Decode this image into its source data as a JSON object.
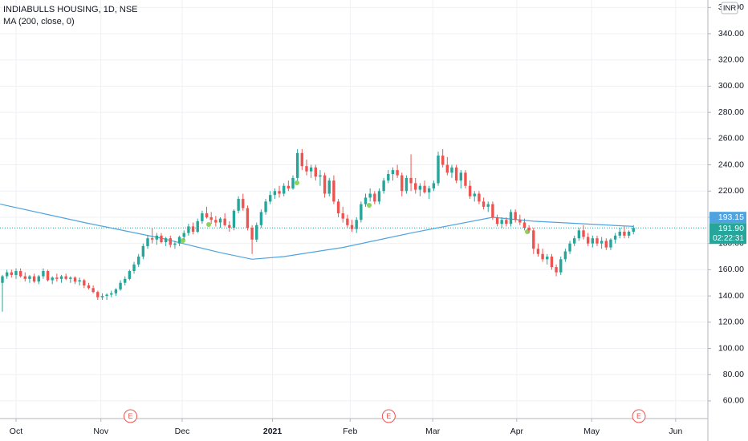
{
  "chart_data": {
    "type": "candlestick",
    "title": "INDIABULLS HOUSING, 1D, NSE",
    "up_color": "#26a69a",
    "down_color": "#ef5350",
    "ylim": [
      46.5,
      365.7
    ],
    "yticks": [
      {
        "value": 60,
        "label": "60.00"
      },
      {
        "value": 80,
        "label": "80.00"
      },
      {
        "value": 100,
        "label": "100.00"
      },
      {
        "value": 120,
        "label": "120.00"
      },
      {
        "value": 140,
        "label": "140.00"
      },
      {
        "value": 160,
        "label": "160.00"
      },
      {
        "value": 180,
        "label": "180.00"
      },
      {
        "value": 200,
        "label": "200.00"
      },
      {
        "value": 220,
        "label": "220.00"
      },
      {
        "value": 240,
        "label": "240.00"
      },
      {
        "value": 260,
        "label": "260.00"
      },
      {
        "value": 280,
        "label": "280.00"
      },
      {
        "value": 300,
        "label": "300.00"
      },
      {
        "value": 320,
        "label": "320.00"
      },
      {
        "value": 340,
        "label": "340.00"
      },
      {
        "value": 360,
        "label": "360.00"
      }
    ],
    "xlim": [
      -0.53,
      155.4
    ],
    "xticks": [
      {
        "value": 3,
        "label": "Oct"
      },
      {
        "value": 21.7,
        "label": "Nov"
      },
      {
        "value": 39.6,
        "label": "Dec"
      },
      {
        "value": 59.5,
        "label": "2021"
      },
      {
        "value": 76.6,
        "label": "Feb"
      },
      {
        "value": 94.8,
        "label": "Mar"
      },
      {
        "value": 113.3,
        "label": "Apr"
      },
      {
        "value": 129.8,
        "label": "May"
      },
      {
        "value": 148.3,
        "label": "Jun"
      }
    ],
    "grid": true,
    "currency": "INR",
    "ohlc": [
      [
        150,
        156,
        128,
        155
      ],
      [
        155,
        160,
        153,
        158
      ],
      [
        158,
        160,
        154,
        156
      ],
      [
        156,
        161,
        153,
        159
      ],
      [
        159,
        161,
        154,
        155
      ],
      [
        155,
        158,
        151,
        153
      ],
      [
        153,
        156,
        150,
        155
      ],
      [
        155,
        157,
        150,
        151
      ],
      [
        151,
        156,
        149,
        155
      ],
      [
        155,
        161,
        153,
        159
      ],
      [
        159,
        160,
        151,
        152
      ],
      [
        152,
        155,
        149,
        154
      ],
      [
        154,
        157,
        151,
        153
      ],
      [
        153,
        156,
        150,
        155
      ],
      [
        155,
        157,
        152,
        153
      ],
      [
        153,
        155,
        150,
        154
      ],
      [
        154,
        155,
        149,
        151
      ],
      [
        151,
        154,
        148,
        152
      ],
      [
        152,
        153,
        146,
        148
      ],
      [
        148,
        150,
        145,
        146
      ],
      [
        146,
        148,
        142,
        143
      ],
      [
        143,
        144,
        137,
        139
      ],
      [
        139,
        142,
        137,
        140
      ],
      [
        140,
        142,
        137,
        141
      ],
      [
        141,
        144,
        139,
        142
      ],
      [
        142,
        146,
        140,
        145
      ],
      [
        145,
        152,
        144,
        150
      ],
      [
        150,
        155,
        148,
        153
      ],
      [
        153,
        160,
        152,
        159
      ],
      [
        159,
        166,
        157,
        164
      ],
      [
        164,
        172,
        162,
        170
      ],
      [
        170,
        180,
        168,
        178
      ],
      [
        178,
        186,
        176,
        184
      ],
      [
        184,
        192,
        180,
        183
      ],
      [
        183,
        188,
        179,
        186
      ],
      [
        186,
        188,
        180,
        181
      ],
      [
        181,
        185,
        178,
        184
      ],
      [
        184,
        186,
        177,
        179
      ],
      [
        179,
        182,
        176,
        180
      ],
      [
        180,
        186,
        178,
        185
      ],
      [
        185,
        190,
        183,
        188
      ],
      [
        188,
        195,
        186,
        193
      ],
      [
        193,
        196,
        187,
        189
      ],
      [
        189,
        199,
        188,
        197
      ],
      [
        197,
        205,
        195,
        203
      ],
      [
        203,
        208,
        199,
        200
      ],
      [
        200,
        204,
        195,
        198
      ],
      [
        198,
        201,
        193,
        196
      ],
      [
        196,
        200,
        192,
        199
      ],
      [
        199,
        203,
        193,
        194
      ],
      [
        194,
        197,
        189,
        192
      ],
      [
        192,
        206,
        190,
        205
      ],
      [
        205,
        216,
        203,
        214
      ],
      [
        214,
        218,
        205,
        207
      ],
      [
        207,
        209,
        190,
        192
      ],
      [
        192,
        194,
        172,
        183
      ],
      [
        183,
        196,
        181,
        194
      ],
      [
        194,
        206,
        192,
        204
      ],
      [
        204,
        214,
        202,
        212
      ],
      [
        212,
        220,
        210,
        217
      ],
      [
        217,
        222,
        214,
        220
      ],
      [
        220,
        224,
        215,
        218
      ],
      [
        218,
        226,
        216,
        224
      ],
      [
        224,
        228,
        220,
        222
      ],
      [
        222,
        232,
        221,
        230
      ],
      [
        230,
        252,
        228,
        249
      ],
      [
        249,
        252,
        236,
        239
      ],
      [
        239,
        244,
        232,
        235
      ],
      [
        235,
        240,
        230,
        238
      ],
      [
        238,
        240,
        228,
        231
      ],
      [
        231,
        236,
        224,
        232
      ],
      [
        232,
        234,
        215,
        218
      ],
      [
        218,
        230,
        216,
        228
      ],
      [
        228,
        232,
        210,
        212
      ],
      [
        212,
        214,
        200,
        203
      ],
      [
        203,
        208,
        196,
        199
      ],
      [
        199,
        202,
        192,
        194
      ],
      [
        194,
        198,
        189,
        191
      ],
      [
        191,
        200,
        188,
        198
      ],
      [
        198,
        212,
        196,
        210
      ],
      [
        210,
        218,
        208,
        215
      ],
      [
        215,
        222,
        212,
        218
      ],
      [
        218,
        220,
        210,
        212
      ],
      [
        212,
        222,
        210,
        220
      ],
      [
        220,
        230,
        218,
        228
      ],
      [
        228,
        236,
        226,
        233
      ],
      [
        233,
        238,
        228,
        236
      ],
      [
        236,
        240,
        230,
        232
      ],
      [
        232,
        234,
        216,
        220
      ],
      [
        220,
        232,
        218,
        230
      ],
      [
        230,
        248,
        220,
        226
      ],
      [
        226,
        230,
        218,
        221
      ],
      [
        221,
        226,
        216,
        224
      ],
      [
        224,
        228,
        218,
        219
      ],
      [
        219,
        224,
        214,
        222
      ],
      [
        222,
        228,
        220,
        226
      ],
      [
        226,
        250,
        224,
        247
      ],
      [
        247,
        252,
        238,
        240
      ],
      [
        240,
        246,
        232,
        234
      ],
      [
        234,
        240,
        230,
        238
      ],
      [
        238,
        240,
        226,
        228
      ],
      [
        228,
        236,
        222,
        234
      ],
      [
        234,
        236,
        222,
        224
      ],
      [
        224,
        228,
        214,
        216
      ],
      [
        216,
        220,
        212,
        218
      ],
      [
        218,
        220,
        210,
        212
      ],
      [
        212,
        215,
        206,
        208
      ],
      [
        208,
        212,
        204,
        210
      ],
      [
        210,
        212,
        198,
        200
      ],
      [
        200,
        202,
        193,
        195
      ],
      [
        195,
        200,
        192,
        198
      ],
      [
        198,
        200,
        193,
        195
      ],
      [
        195,
        206,
        193,
        204
      ],
      [
        204,
        206,
        196,
        198
      ],
      [
        198,
        202,
        194,
        196
      ],
      [
        196,
        199,
        190,
        192
      ],
      [
        192,
        194,
        188,
        190
      ],
      [
        190,
        192,
        172,
        176
      ],
      [
        176,
        180,
        170,
        172
      ],
      [
        172,
        176,
        166,
        168
      ],
      [
        168,
        172,
        164,
        170
      ],
      [
        170,
        172,
        160,
        162
      ],
      [
        162,
        164,
        155,
        158
      ],
      [
        158,
        170,
        156,
        168
      ],
      [
        168,
        176,
        166,
        174
      ],
      [
        174,
        182,
        172,
        180
      ],
      [
        180,
        186,
        178,
        184
      ],
      [
        184,
        192,
        182,
        190
      ],
      [
        190,
        194,
        183,
        185
      ],
      [
        185,
        188,
        178,
        180
      ],
      [
        180,
        186,
        177,
        184
      ],
      [
        184,
        186,
        178,
        180
      ],
      [
        180,
        185,
        176,
        182
      ],
      [
        182,
        184,
        175,
        177
      ],
      [
        177,
        184,
        175,
        183
      ],
      [
        183,
        188,
        180,
        186
      ],
      [
        186,
        192,
        184,
        189
      ],
      [
        189,
        193,
        184,
        186
      ],
      [
        186,
        190,
        184,
        189
      ],
      [
        189,
        194,
        187,
        191.9
      ]
    ],
    "ma": {
      "name": "MA (200, close, 0)",
      "color": "#4fa3e0",
      "x": [
        -0.5,
        18,
        35,
        48,
        55,
        62,
        75,
        90,
        108,
        117,
        139
      ],
      "values": [
        210,
        196,
        184,
        173,
        168,
        170,
        177,
        188,
        200,
        197,
        193
      ]
    },
    "ma_label": {
      "value": 193.15,
      "label": "193.15"
    },
    "last_price": {
      "value": 191.9,
      "label": "191.90"
    },
    "countdown": "02:22:31",
    "events": {
      "x": [
        28.2,
        85.1,
        140.2
      ],
      "labels": [
        "E",
        "E",
        "E"
      ]
    }
  }
}
